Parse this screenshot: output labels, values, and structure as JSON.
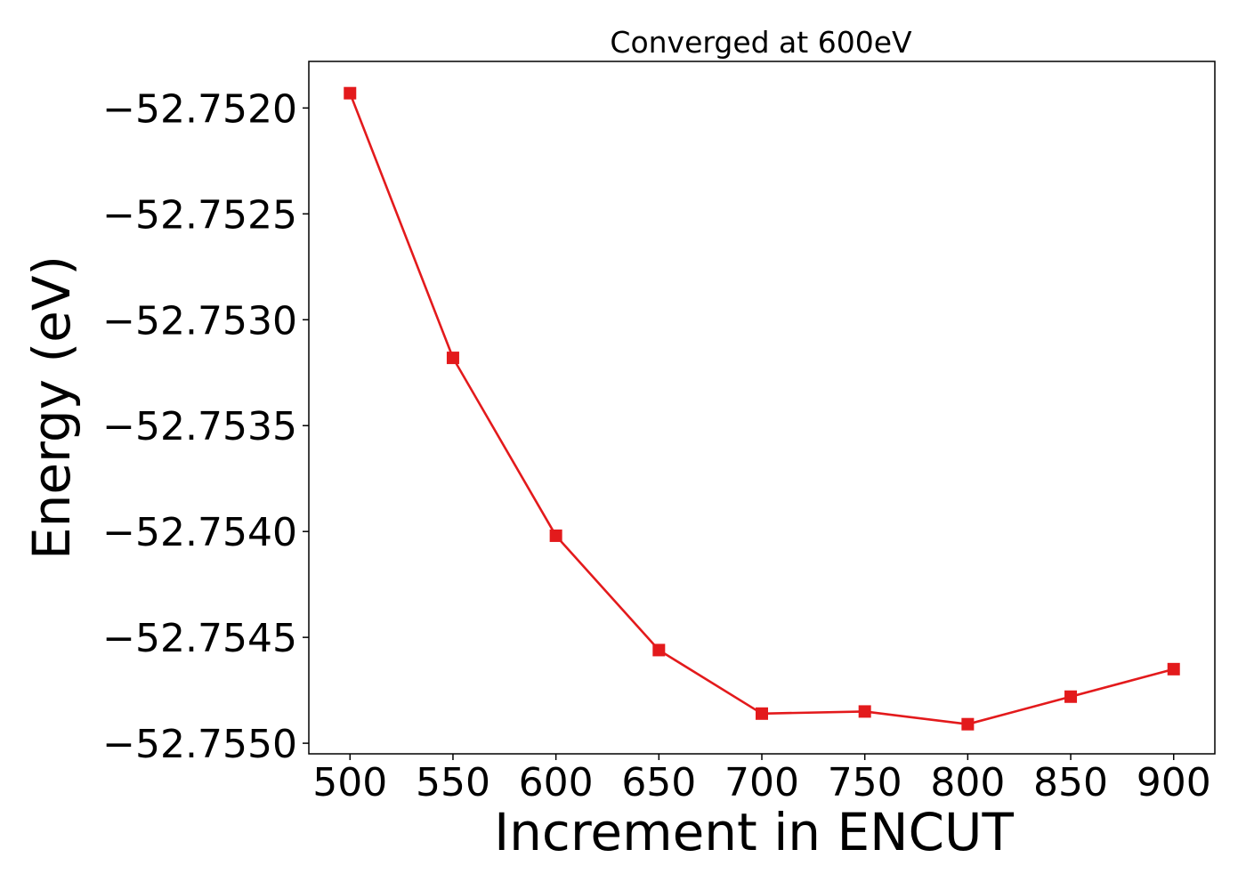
{
  "chart_data": {
    "type": "line",
    "title": "Converged at 600eV",
    "xlabel": "Increment in ENCUT",
    "ylabel": "Energy (eV)",
    "x": [
      500,
      550,
      600,
      650,
      700,
      750,
      800,
      850,
      900
    ],
    "series": [
      {
        "values": [
          -52.75193,
          -52.75318,
          -52.75402,
          -52.75456,
          -52.75486,
          -52.75485,
          -52.75491,
          -52.75478,
          -52.75465
        ],
        "color": "#e31a1c",
        "marker": "square"
      }
    ],
    "xlim": [
      480,
      920
    ],
    "ylim": [
      -52.75505,
      -52.75178
    ],
    "xticks": [
      500,
      550,
      600,
      650,
      700,
      750,
      800,
      850,
      900
    ],
    "xtick_labels": [
      "500",
      "550",
      "600",
      "650",
      "700",
      "750",
      "800",
      "850",
      "900"
    ],
    "yticks": [
      -52.752,
      -52.7525,
      -52.753,
      -52.7535,
      -52.754,
      -52.7545,
      -52.755
    ],
    "ytick_labels": [
      "−52.7520",
      "−52.7525",
      "−52.7530",
      "−52.7535",
      "−52.7540",
      "−52.7545",
      "−52.7550"
    ],
    "grid": false,
    "legend": false
  }
}
